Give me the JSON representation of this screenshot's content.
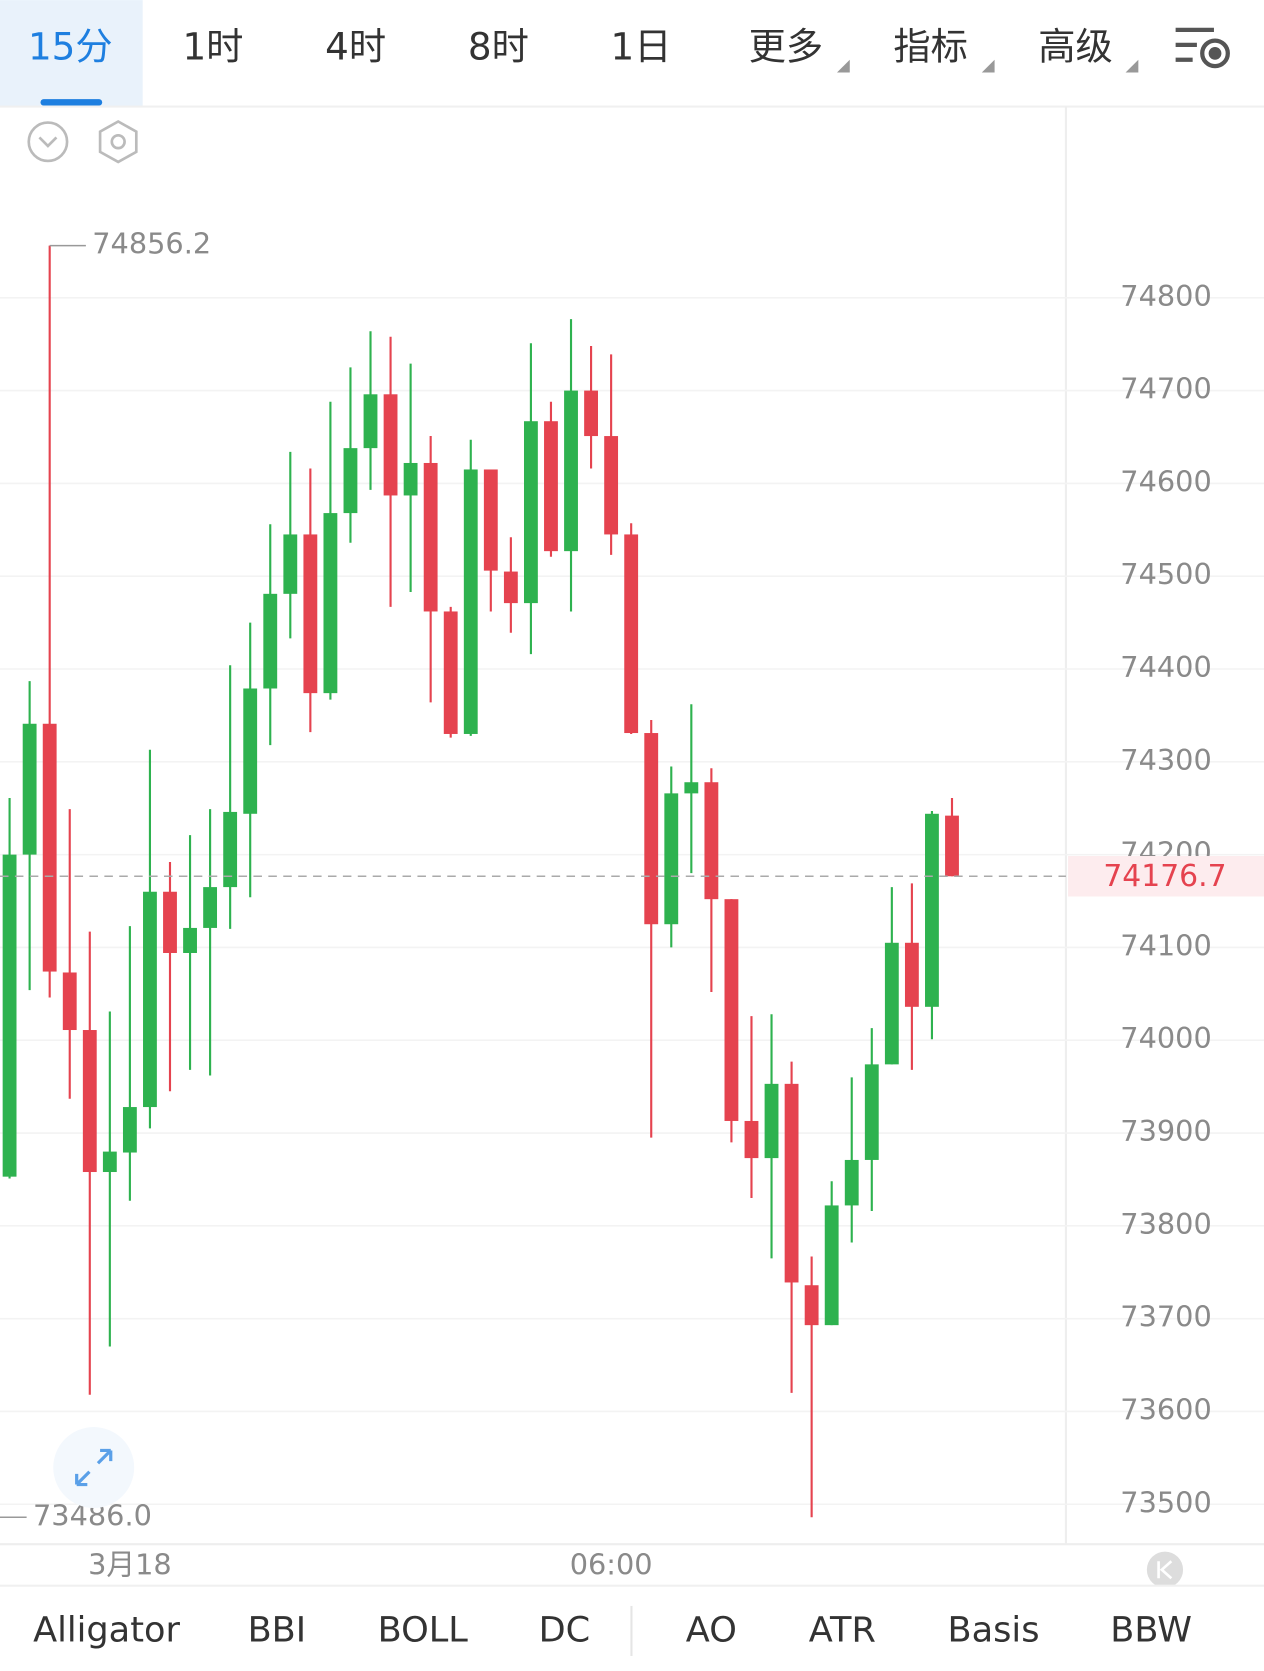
{
  "tabs": [
    "15分",
    "1时",
    "4时",
    "8时",
    "1日",
    "更多",
    "指标",
    "高级"
  ],
  "indicators": [
    "Alligator",
    "BBI",
    "BOLL",
    "DC",
    "AO",
    "ATR",
    "Basis",
    "BBW"
  ],
  "chart_data": {
    "type": "candlestick",
    "categories": [
      null,
      null,
      null,
      null,
      null,
      null,
      "3月18",
      null,
      null,
      null,
      null,
      null,
      null,
      null,
      null,
      null,
      null,
      null,
      null,
      null,
      null,
      null,
      null,
      null,
      null,
      null,
      null,
      null,
      null,
      null,
      "06:00",
      null,
      null,
      null,
      null,
      null,
      null,
      null,
      null,
      null,
      null,
      null,
      null,
      null,
      null,
      null,
      null,
      null
    ],
    "open": [
      73853,
      74200,
      74341,
      74073,
      74011,
      73858,
      73879,
      73928,
      74160,
      74094,
      74121,
      74165,
      74244,
      74379,
      74481,
      74545,
      74374,
      74568,
      74638,
      74696,
      74587,
      74622,
      74462,
      74330,
      74615,
      74505,
      74471,
      74667,
      74527,
      74700,
      74651,
      74545,
      74331,
      74125,
      74266,
      74278,
      74152,
      73913,
      73873,
      73953,
      73736,
      73693,
      73822,
      73871,
      73974,
      74105,
      74036,
      74242
    ],
    "high": [
      74261,
      74387,
      74856.2,
      74249,
      74117,
      74031,
      74123,
      74313,
      74192,
      74221,
      74249,
      74404,
      74450,
      74556,
      74634,
      74616,
      74688,
      74725,
      74764,
      74758,
      74729,
      74651,
      74467,
      74647,
      74615,
      74542,
      74751,
      74688,
      74777,
      74748,
      74739,
      74557,
      74345,
      74295,
      74362,
      74293,
      74152,
      74026,
      74028,
      73977,
      73767,
      73848,
      73960,
      74013,
      74165,
      74169,
      74247,
      74261
    ],
    "low": [
      73851,
      74054,
      74046,
      73937,
      73618,
      73670,
      73827,
      73905,
      73945,
      73968,
      73962,
      74120,
      74154,
      74318,
      74433,
      74332,
      74367,
      74536,
      74593,
      74467,
      74483,
      74364,
      74326,
      74328,
      74462,
      74439,
      74416,
      74521,
      74462,
      74616,
      74523,
      74330,
      73895,
      74100,
      74180,
      74052,
      73890,
      73830,
      73765,
      73620,
      73486.0,
      73693,
      73782,
      73816,
      73974,
      73968,
      74001,
      74176.7
    ],
    "close": [
      74200,
      74341,
      74074,
      74011,
      73858,
      73880,
      73928,
      74160,
      74094,
      74121,
      74165,
      74246,
      74379,
      74481,
      74545,
      74374,
      74568,
      74638,
      74696,
      74587,
      74622,
      74462,
      74330,
      74615,
      74506,
      74471,
      74667,
      74527,
      74700,
      74651,
      74545,
      74331,
      74125,
      74266,
      74278,
      74152,
      73913,
      73873,
      73953,
      73739,
      73693,
      73822,
      73871,
      73974,
      74105,
      74036,
      74244,
      74176.7
    ],
    "up_color": "#2eb24f",
    "down_color": "#e5434f",
    "ylim": [
      73457,
      75006
    ],
    "yticks": [
      73500,
      73600,
      73700,
      73800,
      73900,
      74000,
      74100,
      74200,
      74300,
      74400,
      74500,
      74600,
      74700,
      74800
    ],
    "grid": true,
    "extremes": [
      {
        "value": 74856.2,
        "label": "74856.2"
      },
      {
        "value": 73486.0,
        "label": "73486.0"
      }
    ],
    "last_price": 74176.7
  }
}
